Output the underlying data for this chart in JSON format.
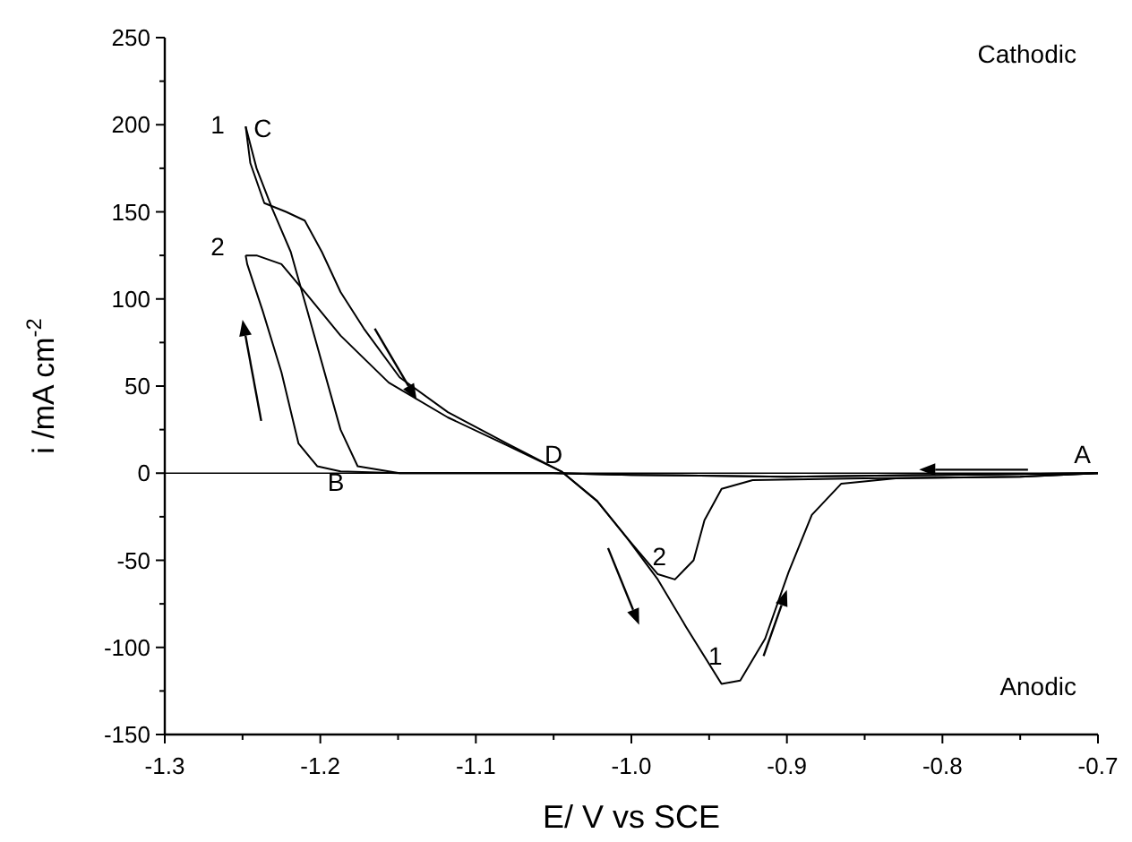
{
  "chart_data": {
    "type": "line",
    "xlabel": "E/ V vs SCE",
    "ylabel": "i /mA cm$^{-2}$",
    "xlim": [
      -1.3,
      -0.7
    ],
    "ylim": [
      -150,
      250
    ],
    "xticks": [
      -1.3,
      {
        "value": -1.25,
        "label": null
      },
      -1.2,
      {
        "value": -1.15,
        "label": null
      },
      -1.1,
      {
        "value": -1.05,
        "label": null
      },
      {
        "value": -1.0,
        "label": "-1.0"
      },
      {
        "value": -0.95,
        "label": null
      },
      -0.9,
      {
        "value": -0.85,
        "label": null
      },
      -0.8,
      {
        "value": -0.75,
        "label": null
      },
      -0.7
    ],
    "yticks": [
      -150,
      {
        "value": -125,
        "label": null
      },
      -100,
      {
        "value": -75,
        "label": null
      },
      -50,
      {
        "value": -25,
        "label": null
      },
      0,
      {
        "value": 25,
        "label": null
      },
      50,
      {
        "value": 75,
        "label": null
      },
      100,
      {
        "value": 125,
        "label": null
      },
      150,
      {
        "value": 175,
        "label": null
      },
      200,
      {
        "value": 225,
        "label": null
      },
      250
    ],
    "grid": false,
    "marker": "none",
    "line_style": "solid",
    "ref_lines": [
      {
        "axis": "y",
        "value": 0,
        "color": "#000000"
      }
    ],
    "series": [
      {
        "color": "#000000",
        "x": [
          -0.7,
          -0.8,
          -0.9,
          -1.0,
          -1.05,
          -1.1,
          -1.149,
          -1.176,
          -1.187,
          -1.207,
          -1.219,
          -1.231,
          -1.241,
          -1.248
        ],
        "values": [
          0,
          -1,
          -2,
          -1,
          0,
          0,
          0,
          4,
          25,
          89,
          127,
          152,
          175,
          199
        ]
      },
      {
        "color": "#000000",
        "x": [
          -1.248,
          -1.245,
          -1.236,
          -1.222,
          -1.21,
          -1.199,
          -1.187,
          -1.172,
          -1.149,
          -1.118,
          -1.08,
          -1.045,
          -1.022,
          -1.003,
          -0.983,
          -0.965,
          -0.942,
          -0.93,
          -0.914,
          -0.899,
          -0.884,
          -0.865,
          -0.83,
          -0.75,
          -0.7
        ],
        "values": [
          199,
          178,
          155,
          150,
          145,
          127,
          104,
          83,
          55,
          35,
          17,
          1,
          -16,
          -37,
          -61,
          -88,
          -121,
          -119,
          -95,
          -57,
          -24,
          -6,
          -3,
          -2,
          0
        ]
      },
      {
        "color": "#000000",
        "x": [
          -0.7,
          -0.8,
          -0.9,
          -1.0,
          -1.05,
          -1.1,
          -1.15,
          -1.187,
          -1.202,
          -1.214,
          -1.225,
          -1.237,
          -1.247,
          -1.248
        ],
        "values": [
          0,
          -1,
          -2,
          -1,
          0,
          0,
          0,
          1,
          4,
          17,
          58,
          93,
          120,
          125
        ]
      },
      {
        "color": "#000000",
        "x": [
          -1.248,
          -1.241,
          -1.225,
          -1.21,
          -1.187,
          -1.156,
          -1.118,
          -1.08,
          -1.045,
          -1.022,
          -1.003,
          -0.983,
          -0.972,
          -0.96,
          -0.953,
          -0.942,
          -0.922,
          -0.85,
          -0.75,
          -0.7
        ],
        "values": [
          125,
          125,
          120,
          104,
          79,
          52,
          32,
          16,
          1,
          -16,
          -37,
          -58,
          -61,
          -50,
          -27,
          -9,
          -4,
          -3,
          -2,
          0
        ]
      }
    ],
    "annotations": [
      "Cathodic",
      "Anodic",
      "A",
      "B",
      "C",
      "D",
      "1",
      "2",
      "2",
      "1"
    ]
  }
}
